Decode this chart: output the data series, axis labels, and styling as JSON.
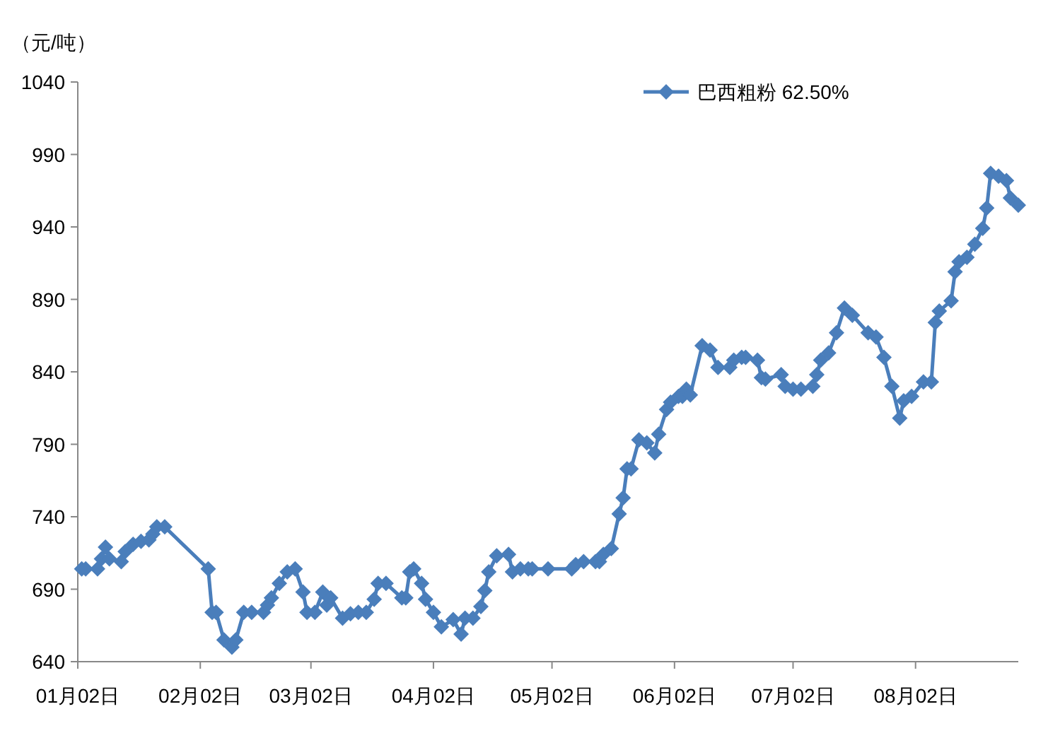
{
  "chart_data": {
    "type": "line",
    "ylabel": "（元/吨）",
    "legend": "top",
    "marker": "diamond",
    "line_style": "solid",
    "grid": false,
    "xlim": [
      "--01-02",
      "--08-28"
    ],
    "xticks": [
      {
        "value": "--01-02",
        "label": "01月02日"
      },
      {
        "value": "--02-02",
        "label": "02月02日"
      },
      {
        "value": "--03-02",
        "label": "03月02日"
      },
      {
        "value": "--04-02",
        "label": "04月02日"
      },
      {
        "value": "--05-02",
        "label": "05月02日"
      },
      {
        "value": "--06-02",
        "label": "06月02日"
      },
      {
        "value": "--07-02",
        "label": "07月02日"
      },
      {
        "value": "--08-02",
        "label": "08月02日"
      }
    ],
    "ylim": [
      640,
      1040
    ],
    "yticks": [
      640,
      690,
      740,
      790,
      840,
      890,
      940,
      990,
      1040
    ],
    "x": [
      "--01-03",
      "--01-04",
      "--01-07",
      "--01-08",
      "--01-09",
      "--01-10",
      "--01-13",
      "--01-14",
      "--01-16",
      "--01-18",
      "--01-20",
      "--01-21",
      "--01-22",
      "--01-24",
      "--02-04",
      "--02-05",
      "--02-06",
      "--02-08",
      "--02-10",
      "--02-11",
      "--02-13",
      "--02-15",
      "--02-18",
      "--02-19",
      "--02-20",
      "--02-22",
      "--02-24",
      "--02-26",
      "--02-28",
      "--03-01",
      "--03-03",
      "--03-05",
      "--03-06",
      "--03-07",
      "--03-10",
      "--03-12",
      "--03-14",
      "--03-16",
      "--03-18",
      "--03-19",
      "--03-21",
      "--03-25",
      "--03-26",
      "--03-27",
      "--03-28",
      "--03-30",
      "--03-31",
      "--04-02",
      "--04-04",
      "--04-07",
      "--04-09",
      "--04-10",
      "--04-12",
      "--04-14",
      "--04-15",
      "--04-16",
      "--04-18",
      "--04-21",
      "--04-22",
      "--04-24",
      "--04-26",
      "--04-27",
      "--05-01",
      "--05-07",
      "--05-08",
      "--05-10",
      "--05-13",
      "--05-14",
      "--05-15",
      "--05-17",
      "--05-19",
      "--05-20",
      "--05-21",
      "--05-22",
      "--05-24",
      "--05-26",
      "--05-28",
      "--05-29",
      "--05-31",
      "--06-01",
      "--06-03",
      "--06-04",
      "--06-05",
      "--06-06",
      "--06-09",
      "--06-11",
      "--06-13",
      "--06-16",
      "--06-17",
      "--06-19",
      "--06-20",
      "--06-23",
      "--06-24",
      "--06-25",
      "--06-29",
      "--06-30",
      "--07-02",
      "--07-04",
      "--07-07",
      "--07-08",
      "--07-09",
      "--07-11",
      "--07-13",
      "--07-15",
      "--07-17",
      "--07-21",
      "--07-23",
      "--07-25",
      "--07-27",
      "--07-29",
      "--07-30",
      "--08-01",
      "--08-04",
      "--08-06",
      "--08-07",
      "--08-08",
      "--08-11",
      "--08-12",
      "--08-13",
      "--08-15",
      "--08-17",
      "--08-19",
      "--08-20",
      "--08-21",
      "--08-23",
      "--08-25",
      "--08-26",
      "--08-28"
    ],
    "series": [
      {
        "name": "巴西粗粉 62.50%",
        "color": "#4a7ebb",
        "values": [
          704,
          704,
          704,
          711,
          719,
          711,
          709,
          716,
          721,
          723,
          724,
          728,
          733,
          733,
          704,
          674,
          674,
          655,
          650,
          655,
          674,
          674,
          674,
          679,
          684,
          694,
          702,
          704,
          688,
          674,
          674,
          688,
          679,
          684,
          670,
          673,
          674,
          674,
          683,
          694,
          694,
          684,
          684,
          702,
          704,
          694,
          683,
          674,
          664,
          669,
          659,
          670,
          670,
          678,
          689,
          702,
          713,
          714,
          702,
          704,
          704,
          704,
          704,
          704,
          707,
          709,
          709,
          709,
          714,
          718,
          742,
          753,
          773,
          773,
          793,
          791,
          784,
          797,
          814,
          819,
          823,
          823,
          828,
          824,
          858,
          855,
          843,
          843,
          848,
          850,
          850,
          848,
          836,
          835,
          838,
          830,
          828,
          828,
          830,
          838,
          848,
          853,
          867,
          884,
          879,
          867,
          864,
          850,
          830,
          808,
          820,
          823,
          833,
          833,
          874,
          882,
          889,
          909,
          916,
          919,
          928,
          939,
          953,
          977,
          975,
          972,
          960,
          955
        ]
      }
    ]
  }
}
